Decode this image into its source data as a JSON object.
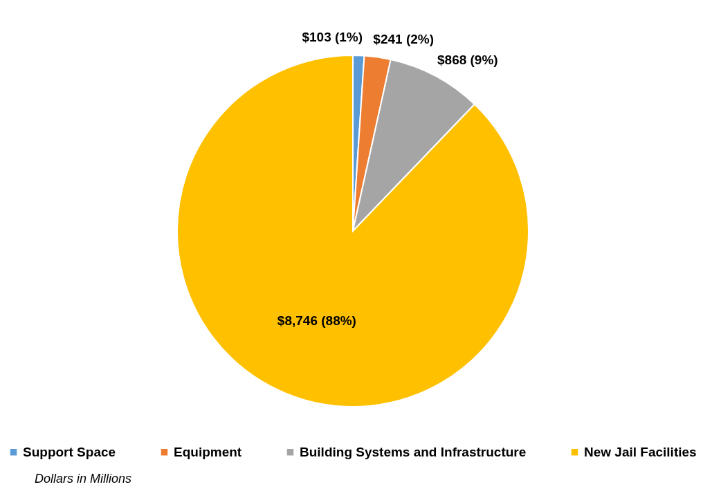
{
  "chart_data": {
    "type": "pie",
    "categories": [
      "Support Space",
      "Equipment",
      "Building Systems and Infrastructure",
      "New Jail Facilities"
    ],
    "values": [
      103,
      241,
      868,
      8746
    ],
    "colors": [
      "#5b9bd5",
      "#ed7d31",
      "#a5a5a5",
      "#ffc000"
    ],
    "value_labels": [
      "$103 (1%)",
      "$241 (2%)",
      "$868 (9%)",
      "$8,746 (88%)"
    ],
    "legend": "bottom",
    "annotations": [
      "Dollars in Millions"
    ]
  }
}
